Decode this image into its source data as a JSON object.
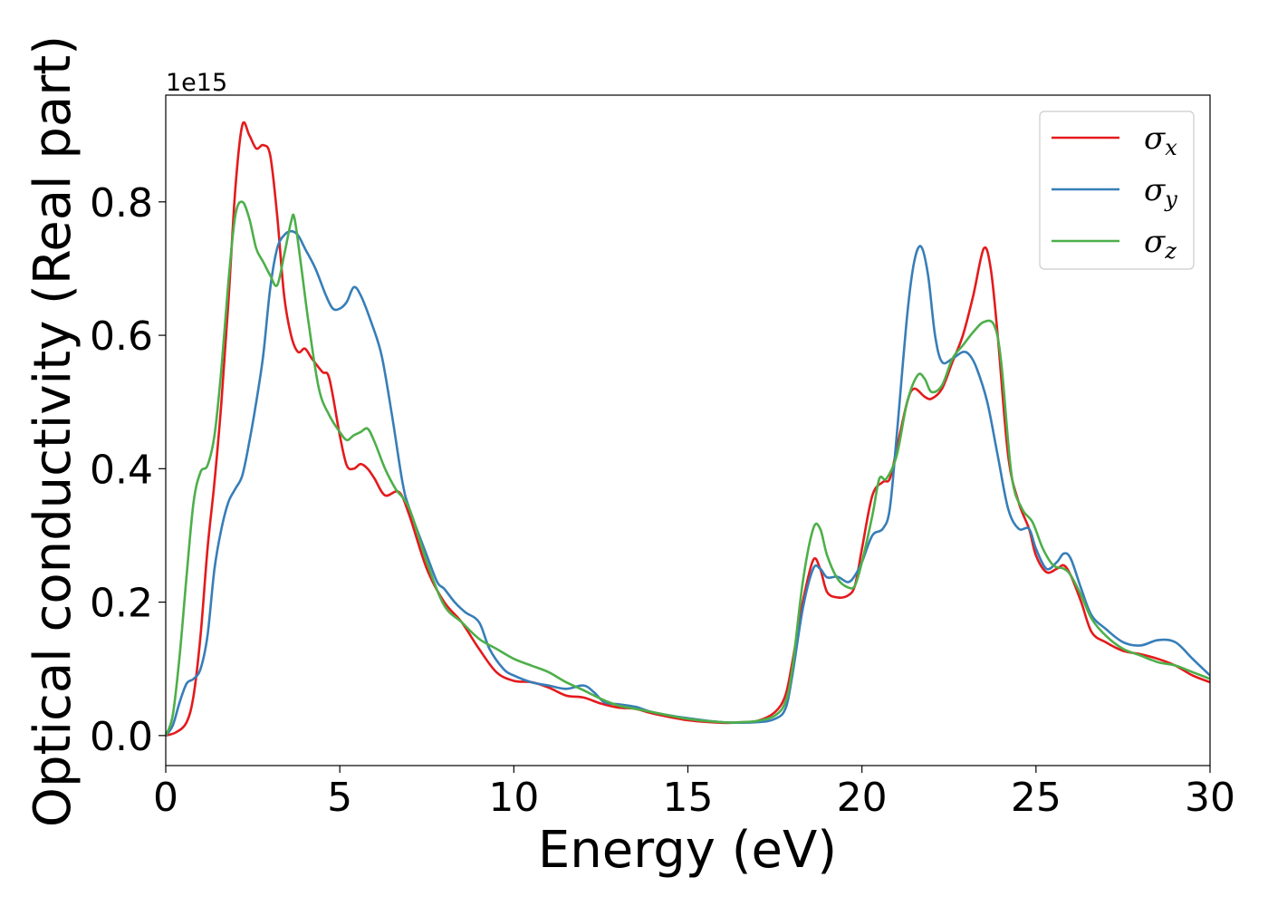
{
  "chart_data": {
    "type": "line",
    "xlabel": "Energy (eV)",
    "ylabel": "Optical conductivity (Real part)",
    "y_offset_text": "1e15",
    "y_scale": 1000000000000000.0,
    "xlim": [
      0,
      30
    ],
    "ylim": [
      -0.045,
      0.96
    ],
    "xticks": [
      0,
      5,
      10,
      15,
      20,
      25,
      30
    ],
    "xtick_labels": [
      "0",
      "5",
      "10",
      "15",
      "20",
      "25",
      "30"
    ],
    "yticks": [
      0.0,
      0.2,
      0.4,
      0.6,
      0.8
    ],
    "ytick_labels": [
      "0.0",
      "0.2",
      "0.4",
      "0.6",
      "0.8"
    ],
    "grid": false,
    "legend_position": "top-right",
    "series": [
      {
        "name": "σx",
        "legend_symbol": "σ",
        "legend_sub": "x",
        "color": "#e41a1c",
        "points": [
          [
            0,
            0.0
          ],
          [
            0.3,
            0.005
          ],
          [
            0.6,
            0.02
          ],
          [
            0.8,
            0.06
          ],
          [
            1.0,
            0.15
          ],
          [
            1.2,
            0.28
          ],
          [
            1.4,
            0.38
          ],
          [
            1.6,
            0.5
          ],
          [
            1.8,
            0.65
          ],
          [
            2.0,
            0.82
          ],
          [
            2.2,
            0.915
          ],
          [
            2.4,
            0.9
          ],
          [
            2.6,
            0.88
          ],
          [
            2.8,
            0.885
          ],
          [
            3.0,
            0.87
          ],
          [
            3.2,
            0.78
          ],
          [
            3.4,
            0.66
          ],
          [
            3.6,
            0.6
          ],
          [
            3.8,
            0.575
          ],
          [
            4.0,
            0.58
          ],
          [
            4.2,
            0.565
          ],
          [
            4.5,
            0.545
          ],
          [
            4.7,
            0.535
          ],
          [
            5.0,
            0.45
          ],
          [
            5.2,
            0.405
          ],
          [
            5.4,
            0.4
          ],
          [
            5.6,
            0.407
          ],
          [
            5.8,
            0.4
          ],
          [
            6.0,
            0.385
          ],
          [
            6.3,
            0.36
          ],
          [
            6.7,
            0.365
          ],
          [
            7.0,
            0.33
          ],
          [
            7.5,
            0.25
          ],
          [
            8.0,
            0.2
          ],
          [
            8.5,
            0.17
          ],
          [
            9.0,
            0.13
          ],
          [
            9.5,
            0.095
          ],
          [
            10.0,
            0.082
          ],
          [
            10.5,
            0.08
          ],
          [
            11.0,
            0.072
          ],
          [
            11.5,
            0.06
          ],
          [
            12.0,
            0.057
          ],
          [
            12.5,
            0.048
          ],
          [
            13.0,
            0.042
          ],
          [
            13.5,
            0.04
          ],
          [
            14.0,
            0.033
          ],
          [
            15.0,
            0.023
          ],
          [
            16.0,
            0.019
          ],
          [
            16.5,
            0.02
          ],
          [
            17.0,
            0.022
          ],
          [
            17.5,
            0.035
          ],
          [
            17.8,
            0.06
          ],
          [
            18.0,
            0.11
          ],
          [
            18.3,
            0.2
          ],
          [
            18.6,
            0.263
          ],
          [
            18.8,
            0.25
          ],
          [
            19.0,
            0.215
          ],
          [
            19.3,
            0.207
          ],
          [
            19.6,
            0.21
          ],
          [
            19.8,
            0.225
          ],
          [
            20.0,
            0.28
          ],
          [
            20.3,
            0.36
          ],
          [
            20.6,
            0.38
          ],
          [
            20.8,
            0.385
          ],
          [
            21.0,
            0.43
          ],
          [
            21.3,
            0.5
          ],
          [
            21.5,
            0.52
          ],
          [
            21.8,
            0.508
          ],
          [
            22.0,
            0.505
          ],
          [
            22.3,
            0.52
          ],
          [
            22.6,
            0.56
          ],
          [
            22.9,
            0.6
          ],
          [
            23.2,
            0.66
          ],
          [
            23.5,
            0.73
          ],
          [
            23.7,
            0.7
          ],
          [
            23.9,
            0.6
          ],
          [
            24.2,
            0.42
          ],
          [
            24.5,
            0.35
          ],
          [
            24.8,
            0.31
          ],
          [
            25.0,
            0.27
          ],
          [
            25.3,
            0.245
          ],
          [
            25.6,
            0.25
          ],
          [
            25.8,
            0.255
          ],
          [
            26.0,
            0.24
          ],
          [
            26.3,
            0.2
          ],
          [
            26.6,
            0.155
          ],
          [
            27.0,
            0.14
          ],
          [
            27.5,
            0.127
          ],
          [
            28.0,
            0.122
          ],
          [
            28.5,
            0.115
          ],
          [
            29.0,
            0.105
          ],
          [
            29.5,
            0.09
          ],
          [
            30.0,
            0.08
          ]
        ]
      },
      {
        "name": "σy",
        "legend_symbol": "σ",
        "legend_sub": "y",
        "color": "#377eb8",
        "points": [
          [
            0,
            0.0
          ],
          [
            0.2,
            0.015
          ],
          [
            0.4,
            0.05
          ],
          [
            0.6,
            0.078
          ],
          [
            0.8,
            0.085
          ],
          [
            1.0,
            0.1
          ],
          [
            1.2,
            0.15
          ],
          [
            1.4,
            0.25
          ],
          [
            1.6,
            0.31
          ],
          [
            1.8,
            0.35
          ],
          [
            2.0,
            0.37
          ],
          [
            2.2,
            0.39
          ],
          [
            2.4,
            0.44
          ],
          [
            2.6,
            0.5
          ],
          [
            2.8,
            0.57
          ],
          [
            3.0,
            0.67
          ],
          [
            3.2,
            0.73
          ],
          [
            3.4,
            0.75
          ],
          [
            3.6,
            0.756
          ],
          [
            3.8,
            0.75
          ],
          [
            4.0,
            0.73
          ],
          [
            4.3,
            0.7
          ],
          [
            4.6,
            0.66
          ],
          [
            4.8,
            0.64
          ],
          [
            5.0,
            0.64
          ],
          [
            5.2,
            0.65
          ],
          [
            5.4,
            0.672
          ],
          [
            5.6,
            0.66
          ],
          [
            5.9,
            0.62
          ],
          [
            6.2,
            0.57
          ],
          [
            6.5,
            0.48
          ],
          [
            6.8,
            0.38
          ],
          [
            7.0,
            0.34
          ],
          [
            7.5,
            0.27
          ],
          [
            7.8,
            0.23
          ],
          [
            8.0,
            0.22
          ],
          [
            8.3,
            0.2
          ],
          [
            8.6,
            0.185
          ],
          [
            9.0,
            0.17
          ],
          [
            9.3,
            0.13
          ],
          [
            9.7,
            0.1
          ],
          [
            10.0,
            0.09
          ],
          [
            10.5,
            0.08
          ],
          [
            11.0,
            0.075
          ],
          [
            11.5,
            0.07
          ],
          [
            12.0,
            0.075
          ],
          [
            12.3,
            0.065
          ],
          [
            12.6,
            0.05
          ],
          [
            13.0,
            0.047
          ],
          [
            13.5,
            0.043
          ],
          [
            14.0,
            0.035
          ],
          [
            15.0,
            0.026
          ],
          [
            16.0,
            0.02
          ],
          [
            17.0,
            0.02
          ],
          [
            17.5,
            0.025
          ],
          [
            17.8,
            0.04
          ],
          [
            18.0,
            0.09
          ],
          [
            18.3,
            0.19
          ],
          [
            18.6,
            0.25
          ],
          [
            18.8,
            0.25
          ],
          [
            19.0,
            0.237
          ],
          [
            19.3,
            0.238
          ],
          [
            19.6,
            0.23
          ],
          [
            19.8,
            0.24
          ],
          [
            20.0,
            0.26
          ],
          [
            20.3,
            0.3
          ],
          [
            20.6,
            0.31
          ],
          [
            20.8,
            0.34
          ],
          [
            21.0,
            0.45
          ],
          [
            21.3,
            0.63
          ],
          [
            21.5,
            0.71
          ],
          [
            21.7,
            0.733
          ],
          [
            21.9,
            0.69
          ],
          [
            22.1,
            0.6
          ],
          [
            22.3,
            0.56
          ],
          [
            22.6,
            0.565
          ],
          [
            22.9,
            0.575
          ],
          [
            23.1,
            0.57
          ],
          [
            23.3,
            0.55
          ],
          [
            23.6,
            0.5
          ],
          [
            23.9,
            0.42
          ],
          [
            24.2,
            0.34
          ],
          [
            24.5,
            0.31
          ],
          [
            24.8,
            0.31
          ],
          [
            25.0,
            0.28
          ],
          [
            25.3,
            0.25
          ],
          [
            25.6,
            0.26
          ],
          [
            25.8,
            0.273
          ],
          [
            26.0,
            0.265
          ],
          [
            26.3,
            0.22
          ],
          [
            26.6,
            0.18
          ],
          [
            27.0,
            0.16
          ],
          [
            27.5,
            0.14
          ],
          [
            28.0,
            0.135
          ],
          [
            28.5,
            0.143
          ],
          [
            29.0,
            0.14
          ],
          [
            29.5,
            0.115
          ],
          [
            30.0,
            0.09
          ]
        ]
      },
      {
        "name": "σz",
        "legend_symbol": "σ",
        "legend_sub": "z",
        "color": "#4daf4a",
        "points": [
          [
            0,
            0.0
          ],
          [
            0.2,
            0.03
          ],
          [
            0.4,
            0.12
          ],
          [
            0.6,
            0.24
          ],
          [
            0.8,
            0.35
          ],
          [
            1.0,
            0.395
          ],
          [
            1.2,
            0.405
          ],
          [
            1.4,
            0.45
          ],
          [
            1.6,
            0.55
          ],
          [
            1.8,
            0.68
          ],
          [
            2.0,
            0.78
          ],
          [
            2.2,
            0.8
          ],
          [
            2.4,
            0.775
          ],
          [
            2.6,
            0.73
          ],
          [
            2.8,
            0.71
          ],
          [
            3.0,
            0.69
          ],
          [
            3.2,
            0.675
          ],
          [
            3.4,
            0.72
          ],
          [
            3.6,
            0.77
          ],
          [
            3.7,
            0.775
          ],
          [
            3.9,
            0.7
          ],
          [
            4.1,
            0.62
          ],
          [
            4.4,
            0.52
          ],
          [
            4.7,
            0.48
          ],
          [
            5.0,
            0.455
          ],
          [
            5.2,
            0.443
          ],
          [
            5.4,
            0.45
          ],
          [
            5.6,
            0.455
          ],
          [
            5.8,
            0.46
          ],
          [
            6.0,
            0.44
          ],
          [
            6.3,
            0.4
          ],
          [
            6.6,
            0.37
          ],
          [
            7.0,
            0.34
          ],
          [
            7.5,
            0.26
          ],
          [
            8.0,
            0.195
          ],
          [
            8.5,
            0.17
          ],
          [
            9.0,
            0.145
          ],
          [
            9.5,
            0.13
          ],
          [
            10.0,
            0.115
          ],
          [
            10.5,
            0.105
          ],
          [
            11.0,
            0.095
          ],
          [
            11.5,
            0.08
          ],
          [
            12.0,
            0.068
          ],
          [
            12.5,
            0.055
          ],
          [
            13.0,
            0.045
          ],
          [
            13.5,
            0.04
          ],
          [
            14.0,
            0.035
          ],
          [
            15.0,
            0.025
          ],
          [
            16.0,
            0.02
          ],
          [
            16.5,
            0.02
          ],
          [
            17.0,
            0.022
          ],
          [
            17.5,
            0.03
          ],
          [
            17.8,
            0.05
          ],
          [
            18.0,
            0.1
          ],
          [
            18.3,
            0.23
          ],
          [
            18.6,
            0.31
          ],
          [
            18.8,
            0.31
          ],
          [
            19.0,
            0.27
          ],
          [
            19.3,
            0.235
          ],
          [
            19.6,
            0.222
          ],
          [
            19.8,
            0.225
          ],
          [
            20.0,
            0.26
          ],
          [
            20.3,
            0.33
          ],
          [
            20.5,
            0.385
          ],
          [
            20.7,
            0.385
          ],
          [
            21.0,
            0.42
          ],
          [
            21.3,
            0.5
          ],
          [
            21.6,
            0.54
          ],
          [
            21.8,
            0.535
          ],
          [
            22.0,
            0.515
          ],
          [
            22.3,
            0.525
          ],
          [
            22.6,
            0.565
          ],
          [
            22.9,
            0.585
          ],
          [
            23.2,
            0.605
          ],
          [
            23.5,
            0.62
          ],
          [
            23.8,
            0.615
          ],
          [
            24.0,
            0.56
          ],
          [
            24.3,
            0.39
          ],
          [
            24.6,
            0.34
          ],
          [
            24.9,
            0.32
          ],
          [
            25.2,
            0.28
          ],
          [
            25.5,
            0.255
          ],
          [
            25.8,
            0.25
          ],
          [
            26.0,
            0.24
          ],
          [
            26.3,
            0.21
          ],
          [
            26.6,
            0.175
          ],
          [
            27.0,
            0.15
          ],
          [
            27.5,
            0.13
          ],
          [
            28.0,
            0.12
          ],
          [
            28.5,
            0.11
          ],
          [
            29.0,
            0.105
          ],
          [
            29.5,
            0.095
          ],
          [
            30.0,
            0.085
          ]
        ]
      }
    ]
  }
}
